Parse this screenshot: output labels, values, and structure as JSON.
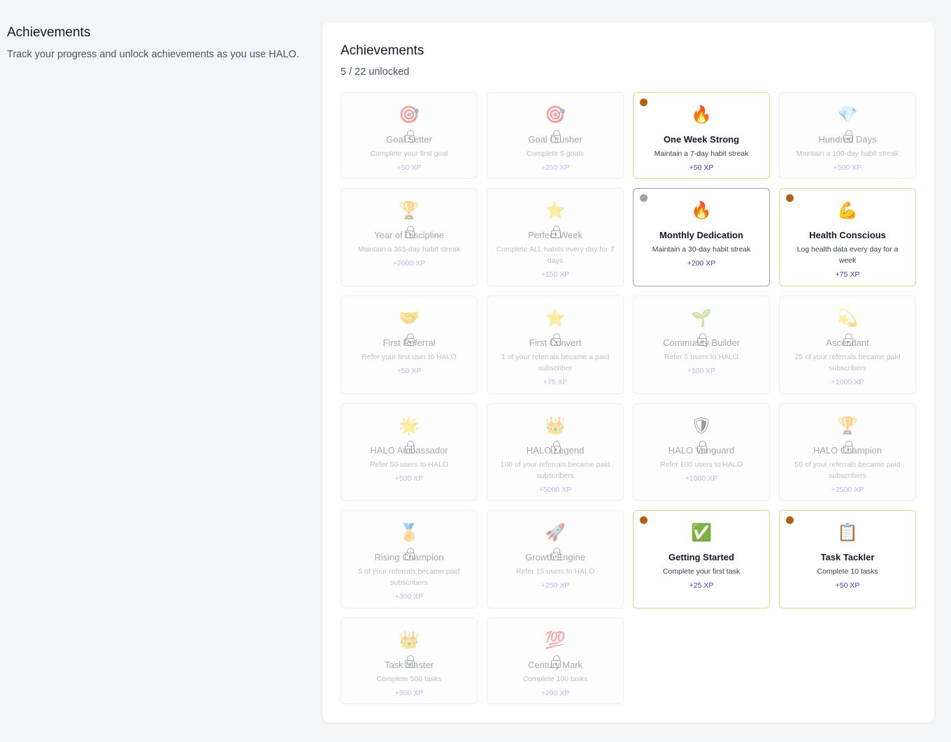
{
  "intro": {
    "title": "Achievements",
    "description": "Track your progress and unlock achievements as you use HALO."
  },
  "panel": {
    "title": "Achievements",
    "progress": "5 / 22 unlocked"
  },
  "colors": {
    "xp": "#4338ca",
    "bronze_medal": "#b5600f",
    "silver_medal": "#a0a4ae",
    "bronze_border": "#f2d67a"
  },
  "achievements": [
    {
      "icon": "🎯",
      "icon_name": "target-icon",
      "name": "Goal Setter",
      "desc": "Complete your first goal",
      "xp": "+50 XP",
      "unlocked": false
    },
    {
      "icon": "🎯",
      "icon_name": "target-icon",
      "name": "Goal Crusher",
      "desc": "Complete 5 goals",
      "xp": "+250 XP",
      "unlocked": false
    },
    {
      "icon": "🔥",
      "icon_name": "fire-icon",
      "name": "One Week Strong",
      "desc": "Maintain a 7-day habit streak",
      "xp": "+50 XP",
      "unlocked": true,
      "medal": "bronze"
    },
    {
      "icon": "💎",
      "icon_name": "gem-icon",
      "name": "Hundred Days",
      "desc": "Maintain a 100-day habit streak",
      "xp": "+500 XP",
      "unlocked": false
    },
    {
      "icon": "🏆",
      "icon_name": "trophy-icon",
      "name": "Year of Discipline",
      "desc": "Maintain a 365-day habit streak",
      "xp": "+2000 XP",
      "unlocked": false
    },
    {
      "icon": "⭐",
      "icon_name": "star-icon",
      "name": "Perfect Week",
      "desc": "Complete ALL habits every day for 7 days",
      "xp": "+150 XP",
      "unlocked": false
    },
    {
      "icon": "🔥",
      "icon_name": "fire-icon",
      "name": "Monthly Dedication",
      "desc": "Maintain a 30-day habit streak",
      "xp": "+200 XP",
      "unlocked": true,
      "medal": "silver"
    },
    {
      "icon": "💪",
      "icon_name": "flexed-biceps-icon",
      "name": "Health Conscious",
      "desc": "Log health data every day for a week",
      "xp": "+75 XP",
      "unlocked": true,
      "medal": "bronze"
    },
    {
      "icon": "🤝",
      "icon_name": "handshake-icon",
      "name": "First Referral",
      "desc": "Refer your first user to HALO",
      "xp": "+50 XP",
      "unlocked": false
    },
    {
      "icon": "⭐",
      "icon_name": "star-icon",
      "name": "First Convert",
      "desc": "1 of your referrals became a paid subscriber",
      "xp": "+75 XP",
      "unlocked": false
    },
    {
      "icon": "🌱",
      "icon_name": "seedling-icon",
      "name": "Community Builder",
      "desc": "Refer 5 users to HALO",
      "xp": "+100 XP",
      "unlocked": false
    },
    {
      "icon": "💫",
      "icon_name": "dizzy-star-icon",
      "name": "Ascendant",
      "desc": "25 of your referrals became paid subscribers",
      "xp": "+1000 XP",
      "unlocked": false
    },
    {
      "icon": "🌟",
      "icon_name": "glowing-star-icon",
      "name": "HALO Ambassador",
      "desc": "Refer 50 users to HALO",
      "xp": "+500 XP",
      "unlocked": false
    },
    {
      "icon": "👑",
      "icon_name": "crown-icon",
      "name": "HALO Legend",
      "desc": "100 of your referrals became paid subscribers",
      "xp": "+5000 XP",
      "unlocked": false
    },
    {
      "icon": "🛡",
      "icon_name": "shield-icon",
      "name": "HALO Vanguard",
      "desc": "Refer 100 users to HALO",
      "xp": "+1000 XP",
      "unlocked": false
    },
    {
      "icon": "🏆",
      "icon_name": "trophy-icon",
      "name": "HALO Champion",
      "desc": "50 of your referrals became paid subscribers",
      "xp": "+2500 XP",
      "unlocked": false
    },
    {
      "icon": "🏅",
      "icon_name": "medal-icon",
      "name": "Rising Champion",
      "desc": "5 of your referrals became paid subscribers",
      "xp": "+300 XP",
      "unlocked": false
    },
    {
      "icon": "🚀",
      "icon_name": "rocket-icon",
      "name": "Growth Engine",
      "desc": "Refer 15 users to HALO",
      "xp": "+250 XP",
      "unlocked": false
    },
    {
      "icon": "✅",
      "icon_name": "check-mark-icon",
      "name": "Getting Started",
      "desc": "Complete your first task",
      "xp": "+25 XP",
      "unlocked": true,
      "medal": "bronze"
    },
    {
      "icon": "📋",
      "icon_name": "clipboard-icon",
      "name": "Task Tackler",
      "desc": "Complete 10 tasks",
      "xp": "+50 XP",
      "unlocked": true,
      "medal": "bronze"
    },
    {
      "icon": "👑",
      "icon_name": "crown-icon",
      "name": "Task Master",
      "desc": "Complete 500 tasks",
      "xp": "+500 XP",
      "unlocked": false
    },
    {
      "icon": "💯",
      "icon_name": "hundred-points-icon",
      "name": "Century Mark",
      "desc": "Complete 100 tasks",
      "xp": "+200 XP",
      "unlocked": false
    }
  ]
}
